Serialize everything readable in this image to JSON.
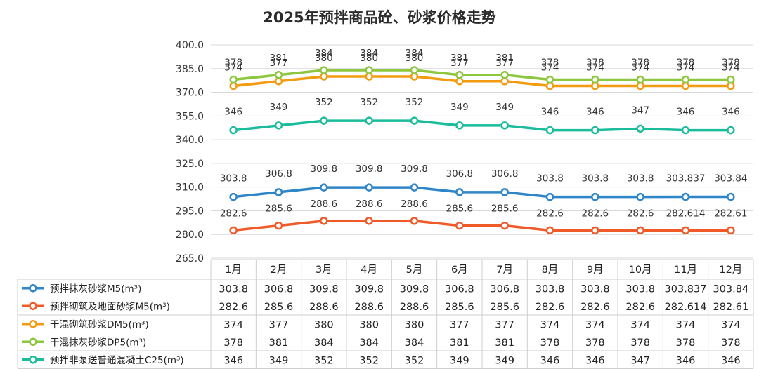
{
  "chart_data": {
    "type": "line",
    "title": "2025年预拌商品砼、砂浆价格走势",
    "categories": [
      "1月",
      "2月",
      "3月",
      "4月",
      "5月",
      "6月",
      "7月",
      "8月",
      "9月",
      "10月",
      "11月",
      "12月"
    ],
    "ylim": [
      265,
      400
    ],
    "yticks": [
      "265.0",
      "280.0",
      "295.0",
      "310.0",
      "325.0",
      "340.0",
      "355.0",
      "370.0",
      "385.0",
      "400.0"
    ],
    "grid": true,
    "series": [
      {
        "name": "预拌抹灰砂浆M5(m³)",
        "color": "#2e86c8",
        "values": [
          303.8,
          306.8,
          309.8,
          309.8,
          309.8,
          306.8,
          306.8,
          303.8,
          303.8,
          303.8,
          303.837,
          303.84
        ],
        "labels": [
          "303.8",
          "306.8",
          "309.8",
          "309.8",
          "309.8",
          "306.8",
          "306.8",
          "303.8",
          "303.8",
          "303.8",
          "303.837",
          "303.84"
        ]
      },
      {
        "name": "预拌砌筑及地面砂浆M5(m³)",
        "color": "#f05a28",
        "values": [
          282.6,
          285.6,
          288.6,
          288.6,
          288.6,
          285.6,
          285.6,
          282.6,
          282.6,
          282.6,
          282.614,
          282.61
        ],
        "labels": [
          "282.6",
          "285.6",
          "288.6",
          "288.6",
          "288.6",
          "285.6",
          "285.6",
          "282.6",
          "282.6",
          "282.6",
          "282.614",
          "282.61"
        ]
      },
      {
        "name": "干混砌筑砂浆DM5(m³)",
        "color": "#f39c12",
        "values": [
          374,
          377,
          380,
          380,
          380,
          377,
          377,
          374,
          374,
          374,
          374,
          374
        ],
        "labels": [
          "374",
          "377",
          "380",
          "380",
          "380",
          "377",
          "377",
          "374",
          "374",
          "374",
          "374",
          "374"
        ]
      },
      {
        "name": "干混抹灰砂浆DP5(m³)",
        "color": "#8dc63f",
        "values": [
          378,
          381,
          384,
          384,
          384,
          381,
          381,
          378,
          378,
          378,
          378,
          378
        ],
        "labels": [
          "378",
          "381",
          "384",
          "384",
          "384",
          "381",
          "381",
          "378",
          "378",
          "378",
          "378",
          "378"
        ]
      },
      {
        "name": "预拌非泵送普通混凝土C25(m³)",
        "color": "#1abc9c",
        "values": [
          346,
          349,
          352,
          352,
          352,
          349,
          349,
          346,
          346,
          347,
          346,
          346
        ],
        "labels": [
          "346",
          "349",
          "352",
          "352",
          "352",
          "349",
          "349",
          "346",
          "346",
          "347",
          "346",
          "346"
        ]
      }
    ]
  }
}
